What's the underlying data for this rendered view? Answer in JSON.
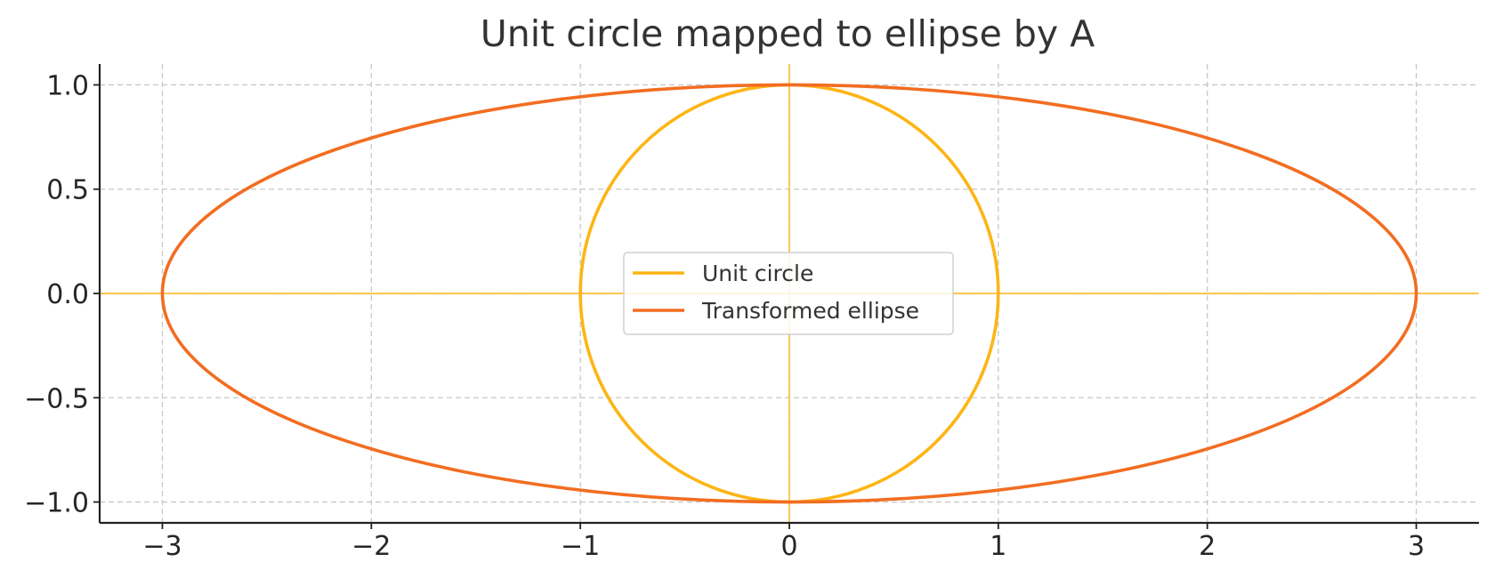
{
  "chart_data": {
    "type": "line",
    "title": "Unit circle mapped to ellipse by A",
    "xlabel": "",
    "ylabel": "",
    "xlim": [
      -3.3,
      3.3
    ],
    "ylim": [
      -1.1,
      1.1
    ],
    "xticks": [
      -3,
      -2,
      -1,
      0,
      1,
      2,
      3
    ],
    "xtick_labels": [
      "−3",
      "−2",
      "−1",
      "0",
      "1",
      "2",
      "3"
    ],
    "yticks": [
      -1.0,
      -0.5,
      0.0,
      0.5,
      1.0
    ],
    "ytick_labels": [
      "−1.0",
      "−0.5",
      "0.0",
      "0.5",
      "1.0"
    ],
    "grid": true,
    "legend_position": "center",
    "reference_lines": {
      "x": 0,
      "y": 0,
      "color": "#FDB515"
    },
    "series": [
      {
        "name": "Unit circle",
        "color": "#FDB515",
        "shape": "ellipse",
        "center": [
          0,
          0
        ],
        "semi_axes": [
          1,
          1
        ],
        "points": [
          [
            1,
            0
          ],
          [
            0.707,
            0.707
          ],
          [
            0,
            1
          ],
          [
            -0.707,
            0.707
          ],
          [
            -1,
            0
          ],
          [
            -0.707,
            -0.707
          ],
          [
            0,
            -1
          ],
          [
            0.707,
            -0.707
          ],
          [
            1,
            0
          ]
        ]
      },
      {
        "name": "Transformed ellipse",
        "color": "#F26D21",
        "shape": "ellipse",
        "center": [
          0,
          0
        ],
        "semi_axes": [
          3,
          1
        ],
        "points": [
          [
            3,
            0
          ],
          [
            2.121,
            0.707
          ],
          [
            0,
            1
          ],
          [
            -2.121,
            0.707
          ],
          [
            -3,
            0
          ],
          [
            -2.121,
            -0.707
          ],
          [
            0,
            -1
          ],
          [
            2.121,
            -0.707
          ],
          [
            3,
            0
          ]
        ]
      }
    ]
  }
}
